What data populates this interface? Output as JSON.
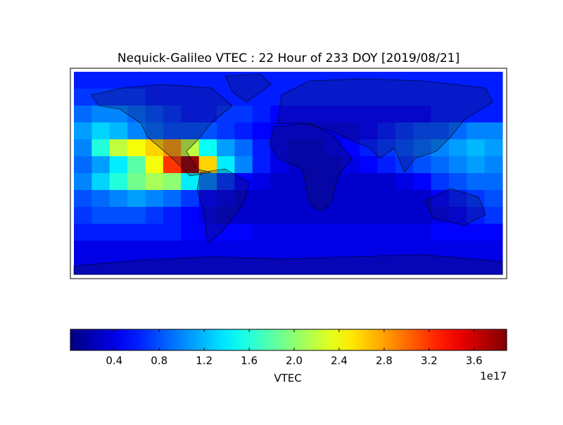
{
  "chart_data": {
    "type": "heatmap",
    "title": "Nequick-Galileo VTEC : 22 Hour of 233 DOY [2019/08/21]",
    "colormap": "jet",
    "clim": [
      0.01,
      3.89
    ],
    "colorbar_label": "VTEC",
    "colorbar_offset": "1e17",
    "colorbar_ticks": [
      0.4,
      0.8,
      1.2,
      1.6,
      {
        "value": 2,
        "label": "2.0"
      },
      2.4,
      2.8,
      3.2,
      3.6
    ],
    "values": [
      [
        0.6,
        0.6,
        0.6,
        0.6,
        0.6,
        0.6,
        0.6,
        0.6,
        0.6,
        0.6,
        0.6,
        0.6,
        0.6,
        0.6,
        0.6,
        0.6,
        0.6,
        0.6,
        0.6,
        0.6,
        0.6,
        0.6,
        0.6,
        0.6
      ],
      [
        0.7,
        0.7,
        0.7,
        0.7,
        0.6,
        0.6,
        0.6,
        0.6,
        0.6,
        0.6,
        0.6,
        0.6,
        0.6,
        0.6,
        0.6,
        0.6,
        0.6,
        0.6,
        0.6,
        0.6,
        0.6,
        0.6,
        0.6,
        0.6
      ],
      [
        0.9,
        1.0,
        1.0,
        0.9,
        0.8,
        0.7,
        0.6,
        0.6,
        0.7,
        0.7,
        0.6,
        0.5,
        0.5,
        0.5,
        0.5,
        0.5,
        0.5,
        0.5,
        0.5,
        0.5,
        0.6,
        0.6,
        0.6,
        0.6
      ],
      [
        1.1,
        1.3,
        1.2,
        1.0,
        0.9,
        0.8,
        0.8,
        0.8,
        0.7,
        0.6,
        0.5,
        0.4,
        0.4,
        0.4,
        0.4,
        0.4,
        0.5,
        0.6,
        0.7,
        0.8,
        0.8,
        0.9,
        1.0,
        1.0
      ],
      [
        1.0,
        1.6,
        2.2,
        2.4,
        2.6,
        2.8,
        2.2,
        1.5,
        1.1,
        0.9,
        0.6,
        0.4,
        0.3,
        0.3,
        0.4,
        0.5,
        0.6,
        0.7,
        0.8,
        0.9,
        1.0,
        1.1,
        1.2,
        1.1
      ],
      [
        0.9,
        1.1,
        1.4,
        1.8,
        2.4,
        3.2,
        3.8,
        2.6,
        1.4,
        1.0,
        0.6,
        0.4,
        0.3,
        0.3,
        0.3,
        0.4,
        0.5,
        0.6,
        0.7,
        0.8,
        0.9,
        1.0,
        1.1,
        1.0
      ],
      [
        1.0,
        1.3,
        1.6,
        1.9,
        2.1,
        2.0,
        1.4,
        1.0,
        0.7,
        0.5,
        0.4,
        0.3,
        0.3,
        0.3,
        0.3,
        0.3,
        0.3,
        0.3,
        0.4,
        0.5,
        0.7,
        0.8,
        0.9,
        0.9
      ],
      [
        0.8,
        0.9,
        1.0,
        1.1,
        1.0,
        0.9,
        0.7,
        0.5,
        0.4,
        0.3,
        0.3,
        0.3,
        0.3,
        0.3,
        0.3,
        0.3,
        0.3,
        0.3,
        0.3,
        0.3,
        0.5,
        0.6,
        0.7,
        0.8
      ],
      [
        0.7,
        0.8,
        0.8,
        0.8,
        0.7,
        0.6,
        0.5,
        0.4,
        0.3,
        0.3,
        0.3,
        0.3,
        0.3,
        0.3,
        0.3,
        0.3,
        0.3,
        0.3,
        0.3,
        0.3,
        0.4,
        0.5,
        0.6,
        0.7
      ],
      [
        0.6,
        0.6,
        0.6,
        0.6,
        0.6,
        0.6,
        0.5,
        0.5,
        0.5,
        0.5,
        0.4,
        0.4,
        0.4,
        0.4,
        0.4,
        0.4,
        0.4,
        0.4,
        0.4,
        0.4,
        0.5,
        0.5,
        0.5,
        0.5
      ],
      [
        0.4,
        0.4,
        0.4,
        0.4,
        0.4,
        0.4,
        0.4,
        0.4,
        0.4,
        0.4,
        0.4,
        0.4,
        0.4,
        0.4,
        0.4,
        0.4,
        0.4,
        0.4,
        0.4,
        0.4,
        0.4,
        0.4,
        0.4,
        0.4
      ],
      [
        0.4,
        0.4,
        0.4,
        0.4,
        0.4,
        0.4,
        0.4,
        0.4,
        0.4,
        0.4,
        0.4,
        0.4,
        0.4,
        0.4,
        0.4,
        0.4,
        0.4,
        0.4,
        0.4,
        0.4,
        0.4,
        0.4,
        0.4,
        0.4
      ]
    ]
  }
}
